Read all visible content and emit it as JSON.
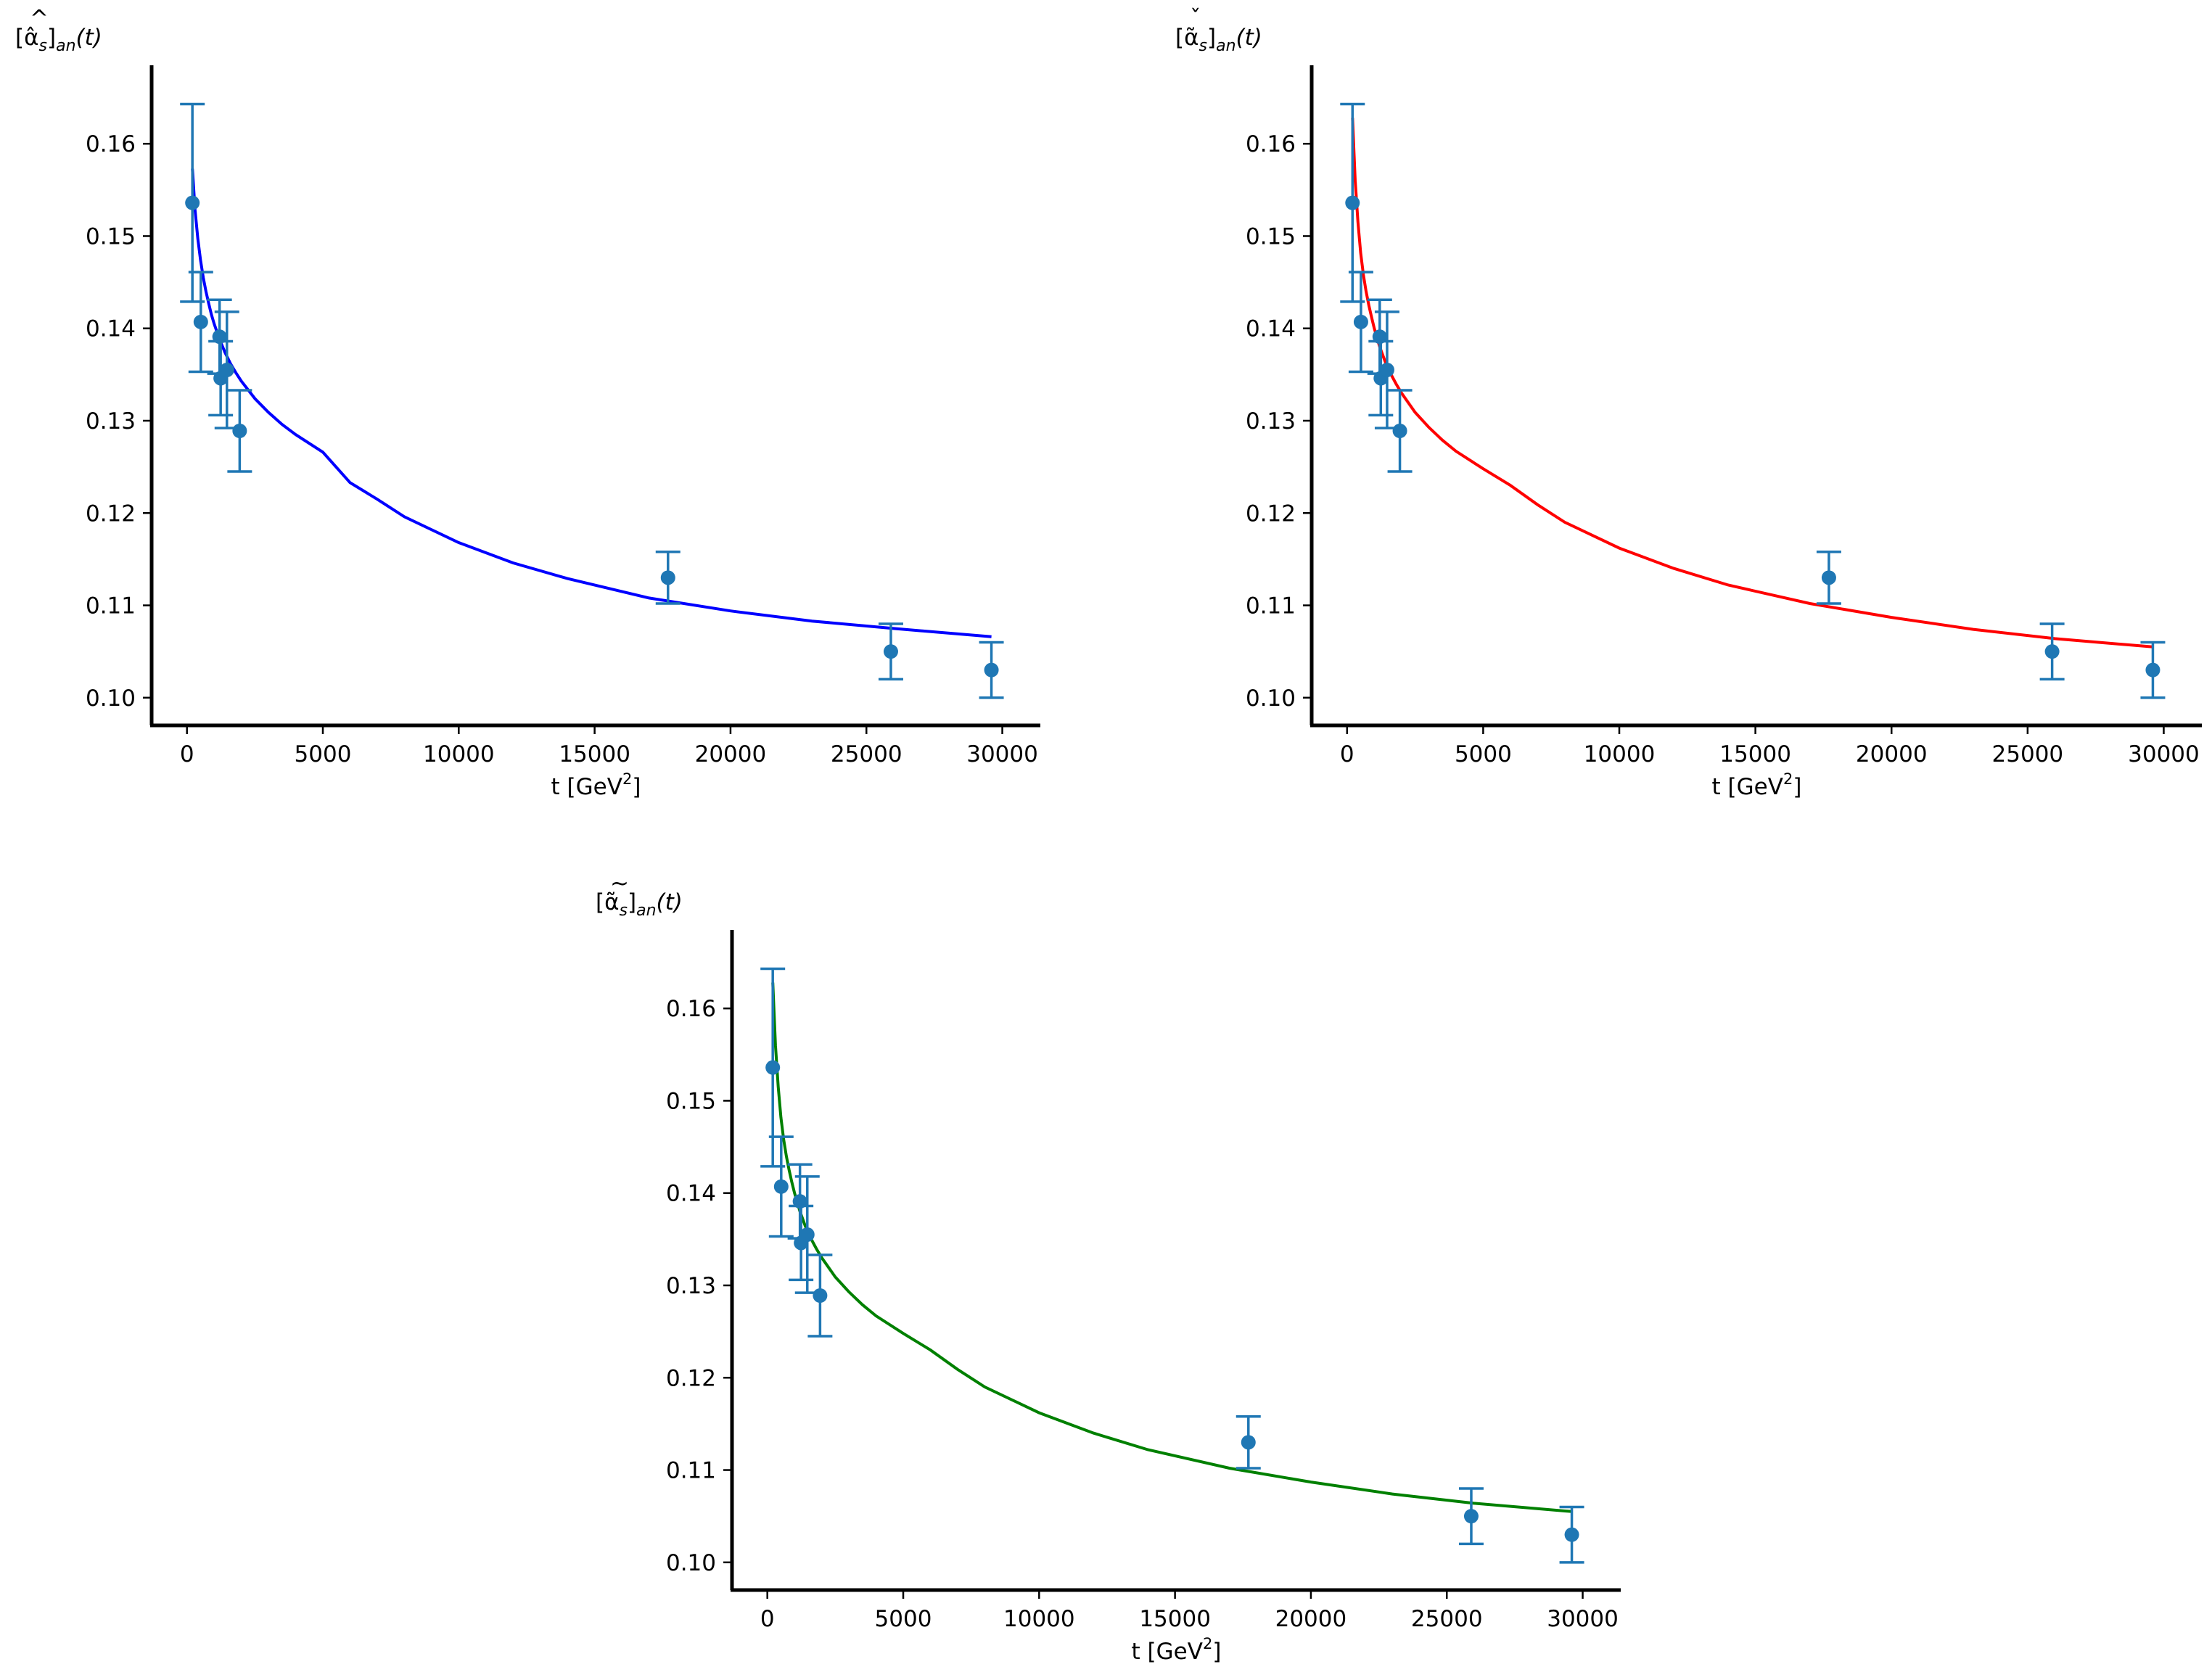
{
  "figure": {
    "background": "#ffffff",
    "marker_color": "#1f77b4",
    "axis_color": "#000000"
  },
  "chart_data": [
    {
      "type": "scatter",
      "id": "top-left",
      "ylabel_main": "[α̂",
      "ylabel_sub1": "s",
      "ylabel_close": "]",
      "ylabel_sub2": "an",
      "ylabel_arg": "(t)",
      "ylabel_accent": "^",
      "xlabel_main": "t [GeV",
      "xlabel_sup": "2",
      "xlabel_close": "]",
      "fit_color": "#0000ff",
      "xlim": [
        -1300,
        31400
      ],
      "ylim": [
        0.097,
        0.1685
      ],
      "xticks": [
        0,
        5000,
        10000,
        15000,
        20000,
        25000,
        30000
      ],
      "xtick_labels": [
        "0",
        "5000",
        "10000",
        "15000",
        "20000",
        "25000",
        "30000"
      ],
      "yticks": [
        0.1,
        0.11,
        0.12,
        0.13,
        0.14,
        0.15,
        0.16
      ],
      "ytick_labels": [
        "0.10",
        "0.11",
        "0.12",
        "0.13",
        "0.14",
        "0.15",
        "0.16"
      ],
      "points": [
        {
          "x": 200,
          "y": 0.1536,
          "err": 0.0107
        },
        {
          "x": 510,
          "y": 0.1407,
          "err": 0.0054
        },
        {
          "x": 1200,
          "y": 0.1391,
          "err": 0.004
        },
        {
          "x": 1240,
          "y": 0.1346,
          "err": 0.004
        },
        {
          "x": 1470,
          "y": 0.1355,
          "err": 0.0063
        },
        {
          "x": 1940,
          "y": 0.1289,
          "err": 0.0044
        },
        {
          "x": 17700,
          "y": 0.113,
          "err": 0.0028
        },
        {
          "x": 25900,
          "y": 0.105,
          "err": 0.003
        },
        {
          "x": 29600,
          "y": 0.103,
          "err": 0.003
        }
      ],
      "curve": {
        "x": [
          200,
          300,
          400,
          500,
          600,
          700,
          800,
          900,
          1000,
          1200,
          1400,
          1600,
          1800,
          2000,
          2500,
          3000,
          3500,
          4000,
          5000,
          6000,
          7000,
          8000,
          10000,
          12000,
          14000,
          17000,
          20000,
          23000,
          26000,
          29600
        ],
        "y": [
          0.1573,
          0.1528,
          0.1497,
          0.1474,
          0.1455,
          0.144,
          0.1427,
          0.1415,
          0.1405,
          0.1388,
          0.1374,
          0.1362,
          0.1352,
          0.1343,
          0.1324,
          0.1309,
          0.1296,
          0.1285,
          0.1266,
          0.1233,
          0.1215,
          0.1196,
          0.1168,
          0.1146,
          0.1129,
          0.1108,
          0.1094,
          0.1083,
          0.1075,
          0.1066
        ]
      }
    },
    {
      "type": "scatter",
      "id": "top-right",
      "ylabel_main": "[α̃",
      "ylabel_sub1": "s",
      "ylabel_close": "]",
      "ylabel_sub2": "an",
      "ylabel_arg": "(t)",
      "ylabel_accent": "ˇ",
      "xlabel_main": "t [GeV",
      "xlabel_sup": "2",
      "xlabel_close": "]",
      "fit_color": "#ff0000",
      "xlim": [
        -1300,
        31400
      ],
      "ylim": [
        0.097,
        0.1685
      ],
      "xticks": [
        0,
        5000,
        10000,
        15000,
        20000,
        25000,
        30000
      ],
      "xtick_labels": [
        "0",
        "5000",
        "10000",
        "15000",
        "20000",
        "25000",
        "30000"
      ],
      "yticks": [
        0.1,
        0.11,
        0.12,
        0.13,
        0.14,
        0.15,
        0.16
      ],
      "ytick_labels": [
        "0.10",
        "0.11",
        "0.12",
        "0.13",
        "0.14",
        "0.15",
        "0.16"
      ],
      "points": [
        {
          "x": 200,
          "y": 0.1536,
          "err": 0.0107
        },
        {
          "x": 510,
          "y": 0.1407,
          "err": 0.0054
        },
        {
          "x": 1200,
          "y": 0.1391,
          "err": 0.004
        },
        {
          "x": 1240,
          "y": 0.1346,
          "err": 0.004
        },
        {
          "x": 1470,
          "y": 0.1355,
          "err": 0.0063
        },
        {
          "x": 1940,
          "y": 0.1289,
          "err": 0.0044
        },
        {
          "x": 17700,
          "y": 0.113,
          "err": 0.0028
        },
        {
          "x": 25900,
          "y": 0.105,
          "err": 0.003
        },
        {
          "x": 29600,
          "y": 0.103,
          "err": 0.003
        }
      ],
      "curve": {
        "x": [
          200,
          300,
          400,
          500,
          600,
          700,
          800,
          900,
          1000,
          1200,
          1400,
          1600,
          1800,
          2000,
          2500,
          3000,
          3500,
          4000,
          5000,
          6000,
          7000,
          8000,
          10000,
          12000,
          14000,
          17000,
          20000,
          23000,
          26000,
          29600
        ],
        "y": [
          0.1628,
          0.156,
          0.1515,
          0.1482,
          0.1458,
          0.144,
          0.1425,
          0.1412,
          0.14,
          0.138,
          0.1364,
          0.1351,
          0.134,
          0.133,
          0.1309,
          0.1293,
          0.1279,
          0.1267,
          0.1248,
          0.123,
          0.1209,
          0.119,
          0.1162,
          0.114,
          0.1122,
          0.1102,
          0.1087,
          0.1074,
          0.1064,
          0.1055
        ]
      }
    },
    {
      "type": "scatter",
      "id": "bottom",
      "ylabel_main": "[α̃",
      "ylabel_sub1": "s",
      "ylabel_close": "]",
      "ylabel_sub2": "an",
      "ylabel_arg": "(t)",
      "ylabel_accent": "~",
      "xlabel_main": "t [GeV",
      "xlabel_sup": "2",
      "xlabel_close": "]",
      "fit_color": "#008000",
      "xlim": [
        -1300,
        31400
      ],
      "ylim": [
        0.097,
        0.1685
      ],
      "xticks": [
        0,
        5000,
        10000,
        15000,
        20000,
        25000,
        30000
      ],
      "xtick_labels": [
        "0",
        "5000",
        "10000",
        "15000",
        "20000",
        "25000",
        "30000"
      ],
      "yticks": [
        0.1,
        0.11,
        0.12,
        0.13,
        0.14,
        0.15,
        0.16
      ],
      "ytick_labels": [
        "0.10",
        "0.11",
        "0.12",
        "0.13",
        "0.14",
        "0.15",
        "0.16"
      ],
      "points": [
        {
          "x": 200,
          "y": 0.1536,
          "err": 0.0107
        },
        {
          "x": 510,
          "y": 0.1407,
          "err": 0.0054
        },
        {
          "x": 1200,
          "y": 0.1391,
          "err": 0.004
        },
        {
          "x": 1240,
          "y": 0.1346,
          "err": 0.004
        },
        {
          "x": 1470,
          "y": 0.1355,
          "err": 0.0063
        },
        {
          "x": 1940,
          "y": 0.1289,
          "err": 0.0044
        },
        {
          "x": 17700,
          "y": 0.113,
          "err": 0.0028
        },
        {
          "x": 25900,
          "y": 0.105,
          "err": 0.003
        },
        {
          "x": 29600,
          "y": 0.103,
          "err": 0.003
        }
      ],
      "curve": {
        "x": [
          200,
          300,
          400,
          500,
          600,
          700,
          800,
          900,
          1000,
          1200,
          1400,
          1600,
          1800,
          2000,
          2500,
          3000,
          3500,
          4000,
          5000,
          6000,
          7000,
          8000,
          10000,
          12000,
          14000,
          17000,
          20000,
          23000,
          26000,
          29600
        ],
        "y": [
          0.1628,
          0.156,
          0.1515,
          0.1482,
          0.1458,
          0.144,
          0.1425,
          0.1412,
          0.14,
          0.138,
          0.1364,
          0.1351,
          0.134,
          0.133,
          0.1309,
          0.1293,
          0.1279,
          0.1267,
          0.1248,
          0.123,
          0.1209,
          0.119,
          0.1162,
          0.114,
          0.1122,
          0.1102,
          0.1087,
          0.1074,
          0.1064,
          0.1055
        ]
      }
    }
  ]
}
